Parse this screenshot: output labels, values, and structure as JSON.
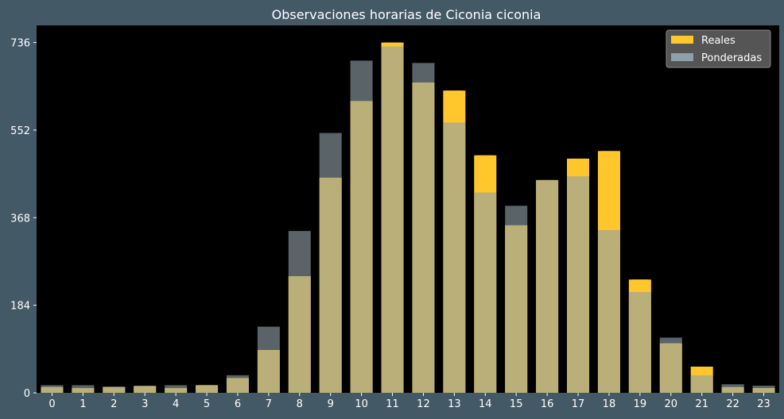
{
  "chart_data": {
    "type": "bar",
    "title": "Observaciones horarias de Ciconia ciconia",
    "xlabel": "",
    "ylabel": "",
    "categories": [
      "0",
      "1",
      "2",
      "3",
      "4",
      "5",
      "6",
      "7",
      "8",
      "9",
      "10",
      "11",
      "12",
      "13",
      "14",
      "15",
      "16",
      "17",
      "18",
      "19",
      "20",
      "21",
      "22",
      "23"
    ],
    "yticks": [
      0,
      184,
      368,
      552,
      736
    ],
    "ylim": [
      0,
      772
    ],
    "grid": false,
    "legend_position": "top-right",
    "series": [
      {
        "name": "Reales",
        "color": "#ffc72c",
        "values": [
          12,
          10,
          12,
          14,
          10,
          16,
          31,
          90,
          245,
          452,
          613,
          736,
          652,
          635,
          499,
          352,
          447,
          492,
          508,
          238,
          104,
          55,
          12,
          10
        ]
      },
      {
        "name": "Ponderadas",
        "color": "#8fa0a8",
        "values": [
          16,
          16,
          13,
          15,
          16,
          15,
          37,
          139,
          340,
          546,
          698,
          728,
          693,
          568,
          421,
          393,
          447,
          455,
          342,
          212,
          116,
          37,
          18,
          15
        ]
      }
    ]
  }
}
